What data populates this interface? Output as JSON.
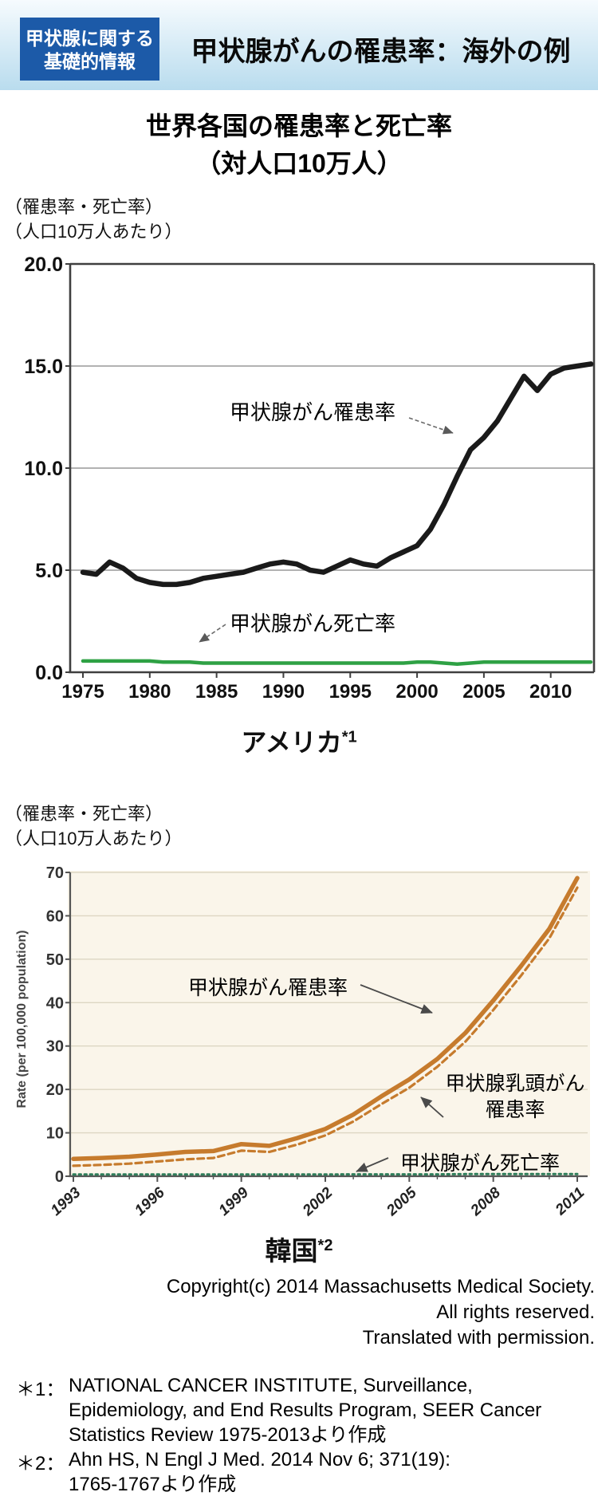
{
  "header": {
    "badge": {
      "line1": "甲状腺に関する",
      "line2": "基礎的情報",
      "bg_color": "#1c5aa8"
    },
    "title": "甲状腺がんの罹患率：海外の例",
    "banner_gradient_top": "#f6fbfe",
    "banner_gradient_bottom": "#b9dcee"
  },
  "main_title": {
    "line1": "世界各国の罹患率と死亡率",
    "line2": "（対人口10万人）"
  },
  "us_section": {
    "unit_line1": "（罹患率・死亡率）",
    "unit_line2": "（人口10万人あたり）",
    "incidence_label": "甲状腺がん罹患率",
    "mortality_label": "甲状腺がん死亡率",
    "caption": "アメリカ",
    "caption_ref": "*1"
  },
  "korea_section": {
    "unit_line1": "（罹患率・死亡率）",
    "unit_line2": "（人口10万人あたり）",
    "y_axis_label": "Rate (per 100,000 population)",
    "incidence_label": "甲状腺がん罹患率",
    "papillary_label_line1": "甲状腺乳頭がん",
    "papillary_label_line2": "罹患率",
    "mortality_label": "甲状腺がん死亡率",
    "caption": "韓国",
    "caption_ref": "*2"
  },
  "copyright": {
    "line1": "Copyright(c) 2014 Massachusetts Medical Society.",
    "line2": "All rights reserved.",
    "line3": "Translated with permission."
  },
  "footnotes": [
    {
      "marker": "＊1：",
      "lines": [
        "NATIONAL CANCER INSTITUTE, Surveillance,",
        "Epidemiology, and End Results Program, SEER Cancer",
        "Statistics Review 1975-2013より作成"
      ]
    },
    {
      "marker": "＊2：",
      "lines": [
        "Ahn HS, N Engl J Med. 2014 Nov 6; 371(19):",
        "1765-1767より作成"
      ]
    }
  ],
  "chart_data": [
    {
      "id": "us",
      "type": "line",
      "title": "アメリカ（甲状腺がん 罹患率・死亡率、人口10万人あたり）",
      "xlabel": "",
      "ylabel": "罹患率・死亡率（人口10万人あたり）",
      "x_range": [
        1975,
        2013
      ],
      "ylim": [
        0,
        20
      ],
      "grid": true,
      "legend_position": "annotated-on-plot",
      "x_tick_labels": [
        "1975",
        "1980",
        "1985",
        "1990",
        "1995",
        "2000",
        "2005",
        "2010"
      ],
      "y_tick_labels": [
        "20.0",
        "15.0",
        "10.0",
        "5.0",
        "0.0"
      ],
      "years": [
        1975,
        1976,
        1977,
        1978,
        1979,
        1980,
        1981,
        1982,
        1983,
        1984,
        1985,
        1986,
        1987,
        1988,
        1989,
        1990,
        1991,
        1992,
        1993,
        1994,
        1995,
        1996,
        1997,
        1998,
        1999,
        2000,
        2001,
        2002,
        2003,
        2004,
        2005,
        2006,
        2007,
        2008,
        2009,
        2010,
        2011,
        2012,
        2013
      ],
      "series": [
        {
          "name": "甲状腺がん罹患率",
          "color": "#1a1a1a",
          "style": "solid",
          "values": [
            4.9,
            4.8,
            5.4,
            5.1,
            4.6,
            4.4,
            4.3,
            4.3,
            4.4,
            4.6,
            4.7,
            4.8,
            4.9,
            5.1,
            5.3,
            5.4,
            5.3,
            5.0,
            4.9,
            5.2,
            5.5,
            5.3,
            5.2,
            5.6,
            5.9,
            6.2,
            7.0,
            8.2,
            9.6,
            10.9,
            11.5,
            12.3,
            13.4,
            14.5,
            13.8,
            14.6,
            14.9,
            15.0,
            15.1
          ]
        },
        {
          "name": "甲状腺がん死亡率",
          "color": "#2ea144",
          "style": "solid",
          "values": [
            0.55,
            0.55,
            0.55,
            0.55,
            0.55,
            0.55,
            0.5,
            0.5,
            0.5,
            0.45,
            0.45,
            0.45,
            0.45,
            0.45,
            0.45,
            0.45,
            0.45,
            0.45,
            0.45,
            0.45,
            0.45,
            0.45,
            0.45,
            0.45,
            0.45,
            0.5,
            0.5,
            0.45,
            0.4,
            0.45,
            0.5,
            0.5,
            0.5,
            0.5,
            0.5,
            0.5,
            0.5,
            0.5,
            0.5
          ]
        }
      ]
    },
    {
      "id": "korea",
      "type": "line",
      "title": "韓国（甲状腺がん 罹患率・死亡率、人口10万人あたり）",
      "xlabel": "",
      "ylabel": "Rate (per 100,000 population)",
      "x_range": [
        1993,
        2011
      ],
      "ylim": [
        0,
        70
      ],
      "grid": true,
      "legend_position": "annotated-on-plot",
      "plot_background": "#faf5ea",
      "x_tick_labels": [
        "1993",
        "1996",
        "1999",
        "2002",
        "2005",
        "2008",
        "2011"
      ],
      "y_tick_labels": [
        "70",
        "60",
        "50",
        "40",
        "30",
        "20",
        "10",
        "0"
      ],
      "years": [
        1993,
        1994,
        1995,
        1996,
        1997,
        1998,
        1999,
        2000,
        2001,
        2002,
        2003,
        2004,
        2005,
        2006,
        2007,
        2008,
        2009,
        2010,
        2011
      ],
      "series": [
        {
          "name": "甲状腺がん罹患率",
          "color": "#c67b2d",
          "style": "solid",
          "values": [
            4.0,
            4.2,
            4.5,
            5.0,
            5.6,
            5.8,
            7.4,
            7.0,
            8.8,
            10.9,
            14.2,
            18.4,
            22.3,
            27.0,
            33.0,
            40.5,
            48.5,
            57.0,
            68.7
          ]
        },
        {
          "name": "甲状腺乳頭がん罹患率",
          "color": "#c67b2d",
          "style": "dashed",
          "values": [
            2.4,
            2.6,
            2.9,
            3.4,
            3.9,
            4.2,
            5.9,
            5.6,
            7.3,
            9.4,
            12.6,
            16.6,
            20.4,
            25.2,
            31.0,
            38.3,
            46.3,
            54.8,
            66.5
          ]
        },
        {
          "name": "甲状腺がん死亡率",
          "color": "#2e7d5a",
          "style": "dotted",
          "values": [
            0.4,
            0.4,
            0.4,
            0.4,
            0.4,
            0.4,
            0.4,
            0.4,
            0.4,
            0.4,
            0.45,
            0.45,
            0.45,
            0.45,
            0.5,
            0.5,
            0.5,
            0.5,
            0.5
          ]
        }
      ]
    }
  ]
}
